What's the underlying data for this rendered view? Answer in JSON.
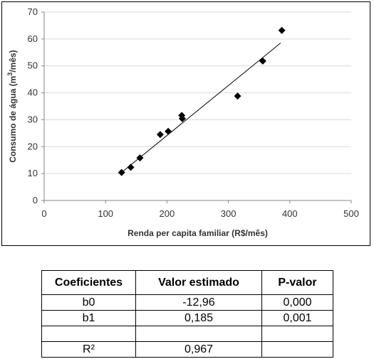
{
  "chart_data": {
    "type": "scatter",
    "title": "",
    "xlabel": "Renda per capita familiar (R$/mês)",
    "ylabel_main": "Consumo de água (m",
    "ylabel_sup": "3",
    "ylabel_tail": "/mês)",
    "xlim": [
      0,
      500
    ],
    "ylim": [
      0,
      70
    ],
    "xticks": [
      "0",
      "100",
      "200",
      "300",
      "400",
      "500"
    ],
    "yticks": [
      "0",
      "10",
      "20",
      "30",
      "40",
      "50",
      "60",
      "70"
    ],
    "grid": "horizontal",
    "points": [
      {
        "x": 126,
        "y": 10.4
      },
      {
        "x": 141,
        "y": 12.3
      },
      {
        "x": 156,
        "y": 15.8
      },
      {
        "x": 189,
        "y": 24.5
      },
      {
        "x": 202,
        "y": 25.7
      },
      {
        "x": 224,
        "y": 31.6
      },
      {
        "x": 225,
        "y": 30.4
      },
      {
        "x": 315,
        "y": 38.8
      },
      {
        "x": 356,
        "y": 51.8
      },
      {
        "x": 387,
        "y": 63.2
      }
    ],
    "trendline": {
      "x0": 126,
      "y0": 10.4,
      "x1": 385,
      "y1": 58.5
    },
    "colors": {
      "grid": "#d9d9d9",
      "axis": "#868686",
      "marker": "#000000",
      "trend": "#000000"
    }
  },
  "table": {
    "headers": [
      "Coeficientes",
      "Valor estimado",
      "P-valor"
    ],
    "rows": [
      [
        "b0",
        "-12,96",
        "0,000"
      ],
      [
        "b1",
        "0,185",
        "0,001"
      ],
      [
        "",
        "",
        ""
      ],
      [
        "R²",
        "0,967",
        ""
      ]
    ]
  }
}
